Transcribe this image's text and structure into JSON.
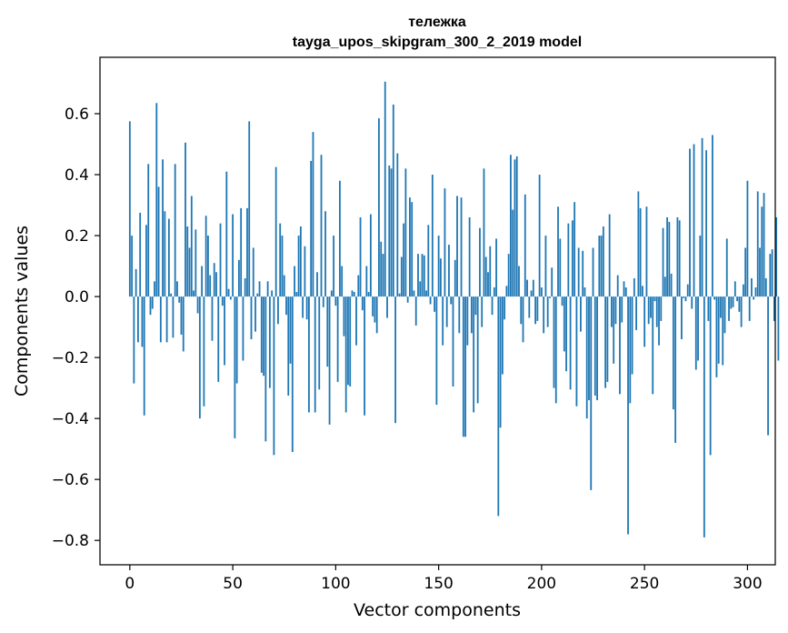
{
  "chart_data": {
    "type": "bar",
    "title": "тележка",
    "subtitle": "tayga_upos_skipgram_300_2_2019 model",
    "xlabel": "Vector components",
    "ylabel": "Components values",
    "xlim": [
      -14.5,
      313.5
    ],
    "ylim": [
      -0.88,
      0.785
    ],
    "x_ticks": [
      0,
      50,
      100,
      150,
      200,
      250,
      300
    ],
    "x_tick_labels": [
      "0",
      "50",
      "100",
      "150",
      "200",
      "250",
      "300"
    ],
    "y_ticks": [
      -0.8,
      -0.6,
      -0.4,
      -0.2,
      0.0,
      0.2,
      0.4,
      0.6
    ],
    "y_tick_labels": [
      "−0.8",
      "−0.6",
      "−0.4",
      "−0.2",
      "0.0",
      "0.2",
      "0.4",
      "0.6"
    ],
    "bar_color": "#1f77b4",
    "values": [
      0.575,
      0.2,
      -0.285,
      0.09,
      -0.15,
      0.275,
      -0.165,
      -0.39,
      0.235,
      0.435,
      -0.06,
      -0.04,
      0.05,
      0.635,
      0.36,
      -0.15,
      0.45,
      0.28,
      -0.15,
      0.255,
      0.01,
      -0.135,
      0.435,
      0.05,
      -0.02,
      -0.125,
      -0.18,
      0.505,
      0.23,
      0.16,
      0.33,
      0.02,
      0.22,
      -0.055,
      -0.4,
      0.1,
      -0.36,
      0.265,
      0.2,
      0.07,
      -0.145,
      0.11,
      0.08,
      -0.28,
      0.24,
      -0.03,
      -0.225,
      0.41,
      0.025,
      -0.01,
      0.27,
      -0.465,
      -0.285,
      0.12,
      0.29,
      -0.21,
      0.06,
      0.29,
      0.575,
      -0.14,
      0.16,
      -0.115,
      0.01,
      0.05,
      -0.25,
      -0.26,
      -0.475,
      0.05,
      -0.3,
      0.02,
      -0.52,
      0.425,
      -0.09,
      0.24,
      0.2,
      0.07,
      -0.06,
      -0.325,
      -0.22,
      -0.51,
      0.1,
      0.015,
      0.2,
      0.23,
      -0.07,
      0.165,
      -0.075,
      -0.38,
      0.445,
      0.54,
      -0.38,
      0.08,
      -0.305,
      0.465,
      -0.035,
      0.28,
      -0.23,
      -0.42,
      0.02,
      0.2,
      -0.03,
      -0.28,
      0.38,
      0.1,
      -0.13,
      -0.38,
      -0.29,
      -0.295,
      0.02,
      0.015,
      -0.16,
      0.07,
      0.26,
      -0.045,
      -0.39,
      0.1,
      0.015,
      0.27,
      -0.065,
      -0.085,
      -0.12,
      0.585,
      0.18,
      0.14,
      0.705,
      -0.07,
      0.43,
      0.42,
      0.63,
      -0.415,
      0.47,
      0.01,
      0.13,
      0.24,
      0.42,
      -0.02,
      0.325,
      0.31,
      0.02,
      -0.095,
      0.14,
      0.05,
      0.14,
      0.135,
      0.02,
      0.235,
      -0.025,
      0.4,
      -0.05,
      -0.355,
      0.2,
      0.125,
      -0.16,
      0.355,
      -0.1,
      0.17,
      -0.025,
      -0.295,
      0.12,
      0.33,
      -0.12,
      0.325,
      -0.46,
      -0.46,
      -0.16,
      0.26,
      -0.12,
      -0.38,
      -0.06,
      -0.35,
      0.225,
      -0.1,
      0.42,
      0.13,
      0.08,
      0.165,
      -0.06,
      0.03,
      0.19,
      -0.72,
      -0.43,
      -0.255,
      -0.075,
      0.035,
      0.14,
      0.465,
      0.285,
      0.45,
      0.46,
      0.1,
      -0.09,
      -0.15,
      0.335,
      0.055,
      -0.07,
      0.02,
      0.055,
      -0.09,
      -0.08,
      0.4,
      0.03,
      -0.12,
      0.2,
      -0.1,
      -0.005,
      0.095,
      -0.3,
      -0.35,
      0.295,
      0.19,
      -0.03,
      -0.18,
      -0.245,
      0.24,
      -0.305,
      0.25,
      0.31,
      -0.36,
      0.16,
      -0.115,
      0.15,
      0.03,
      -0.4,
      -0.34,
      -0.635,
      0.16,
      -0.325,
      -0.34,
      0.2,
      0.2,
      0.23,
      -0.3,
      -0.28,
      0.27,
      -0.1,
      -0.22,
      -0.09,
      0.07,
      -0.32,
      -0.085,
      0.05,
      0.03,
      -0.78,
      -0.35,
      -0.255,
      0.06,
      -0.11,
      0.345,
      0.29,
      0.035,
      -0.165,
      0.295,
      -0.09,
      -0.07,
      -0.32,
      -0.015,
      -0.1,
      -0.16,
      -0.08,
      0.225,
      0.065,
      0.26,
      0.245,
      0.075,
      -0.37,
      -0.48,
      0.26,
      0.25,
      -0.14,
      -0.005,
      -0.015,
      0.04,
      0.485,
      -0.04,
      0.5,
      -0.24,
      -0.21,
      0.2,
      0.52,
      -0.79,
      0.48,
      -0.08,
      -0.52,
      0.53,
      -0.01,
      -0.265,
      -0.22,
      -0.07,
      -0.225,
      -0.12,
      0.19,
      -0.08,
      -0.04,
      -0.035,
      0.05,
      -0.015,
      -0.05,
      -0.1,
      0.04,
      0.16,
      0.38,
      -0.08,
      0.06,
      -0.01,
      0.03,
      0.345,
      0.16,
      0.295,
      0.34,
      0.06,
      -0.455,
      0.14,
      0.155,
      -0.08,
      0.26,
      -0.21
    ]
  }
}
